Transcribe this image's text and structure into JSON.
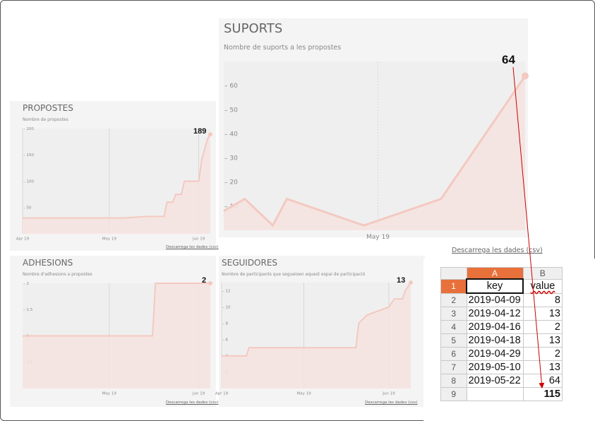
{
  "panels": {
    "suports": {
      "title": "SUPORTS",
      "subtitle": "Nombre de suports a les propostes",
      "callout": "64",
      "download": "Descarrega les dades (csv)"
    },
    "propostes": {
      "title": "PROPOSTES",
      "subtitle": "Nombre de propostes",
      "callout": "189",
      "download": "Descarrega les dades (csv)"
    },
    "adhesions": {
      "title": "ADHESIONS",
      "subtitle": "Nombre d'adhesions a propostes",
      "callout": "2",
      "download": "Descarrega les dades (csv)"
    },
    "seguidors": {
      "title": "SEGUIDORES",
      "subtitle": "Nombre de participants que segueixen aquest espai de participació",
      "callout": "13",
      "download": "Descarrega les dades (csv)"
    }
  },
  "chart_data": [
    {
      "id": "suports",
      "type": "area",
      "title": "SUPORTS",
      "x": [
        "2019-04-09",
        "2019-04-12",
        "2019-04-16",
        "2019-04-18",
        "2019-04-29",
        "2019-05-10",
        "2019-05-22"
      ],
      "values": [
        8,
        13,
        2,
        13,
        2,
        13,
        64
      ],
      "xlim": [
        "2019-04-09",
        "2019-05-22"
      ],
      "ylim": [
        0,
        70
      ],
      "yticks": [
        10,
        20,
        30,
        40,
        50,
        60
      ],
      "xticks": [
        {
          "date": "2019-05-01",
          "label": "May 19"
        }
      ],
      "color": "#f3c9c0"
    },
    {
      "id": "propostes",
      "type": "area",
      "title": "PROPOSTES",
      "x": [
        "2019-04-01",
        "2019-04-06",
        "2019-05-06",
        "2019-05-14",
        "2019-05-20",
        "2019-05-21",
        "2019-05-23",
        "2019-05-24",
        "2019-05-26",
        "2019-05-27",
        "2019-05-28",
        "2019-05-30",
        "2019-06-01",
        "2019-06-02",
        "2019-06-04",
        "2019-06-05"
      ],
      "values": [
        30,
        30,
        30,
        33,
        33,
        60,
        60,
        75,
        75,
        100,
        100,
        100,
        100,
        140,
        180,
        189
      ],
      "xlim": [
        "2019-04-01",
        "2019-06-05"
      ],
      "ylim": [
        0,
        200
      ],
      "yticks": [
        50,
        100,
        150,
        200
      ],
      "xticks": [
        {
          "date": "2019-04-01",
          "label": "Apr 19"
        },
        {
          "date": "2019-05-01",
          "label": "May 19"
        },
        {
          "date": "2019-06-01",
          "label": "Jun 19"
        }
      ],
      "color": "#f3c9c0"
    },
    {
      "id": "adhesions",
      "type": "area",
      "title": "ADHESIONS",
      "x": [
        "2019-04-01",
        "2019-05-16",
        "2019-05-17",
        "2019-06-05"
      ],
      "values": [
        1,
        1,
        2,
        2
      ],
      "xlim": [
        "2019-04-01",
        "2019-06-05"
      ],
      "ylim": [
        0,
        2
      ],
      "yticks": [
        0.5,
        1.0,
        1.5,
        2.0
      ],
      "xticks": [
        {
          "date": "2019-05-01",
          "label": "May 19"
        },
        {
          "date": "2019-06-01",
          "label": "Jun 19"
        }
      ],
      "color": "#f3c9c0"
    },
    {
      "id": "seguidors",
      "type": "area",
      "title": "SEGUIDORES",
      "x": [
        "2019-04-01",
        "2019-04-10",
        "2019-04-11",
        "2019-05-20",
        "2019-05-21",
        "2019-05-24",
        "2019-06-01",
        "2019-06-03",
        "2019-06-06",
        "2019-06-07",
        "2019-06-09"
      ],
      "values": [
        4,
        4,
        5,
        5,
        8,
        9,
        10,
        11,
        11,
        12,
        13
      ],
      "xlim": [
        "2019-04-01",
        "2019-06-09"
      ],
      "ylim": [
        0,
        13
      ],
      "yticks": [
        2,
        4,
        6,
        8,
        10,
        12
      ],
      "xticks": [
        {
          "date": "2019-04-01",
          "label": "Apr 19"
        },
        {
          "date": "2019-05-01",
          "label": "May 19"
        },
        {
          "date": "2019-06-01",
          "label": "Jun 19"
        }
      ],
      "color": "#f3c9c0"
    }
  ],
  "spreadsheet": {
    "columns": [
      "A",
      "B"
    ],
    "header": [
      "key",
      "value"
    ],
    "rows": [
      {
        "n": "2",
        "key": "2019-04-09",
        "value": "8"
      },
      {
        "n": "3",
        "key": "2019-04-12",
        "value": "13"
      },
      {
        "n": "4",
        "key": "2019-04-16",
        "value": "2"
      },
      {
        "n": "5",
        "key": "2019-04-18",
        "value": "13"
      },
      {
        "n": "6",
        "key": "2019-04-29",
        "value": "2"
      },
      {
        "n": "7",
        "key": "2019-05-10",
        "value": "13"
      },
      {
        "n": "8",
        "key": "2019-05-22",
        "value": "64"
      }
    ],
    "row1": "1",
    "row9": "9",
    "total": "115"
  },
  "annotation_color": "#cc0000"
}
